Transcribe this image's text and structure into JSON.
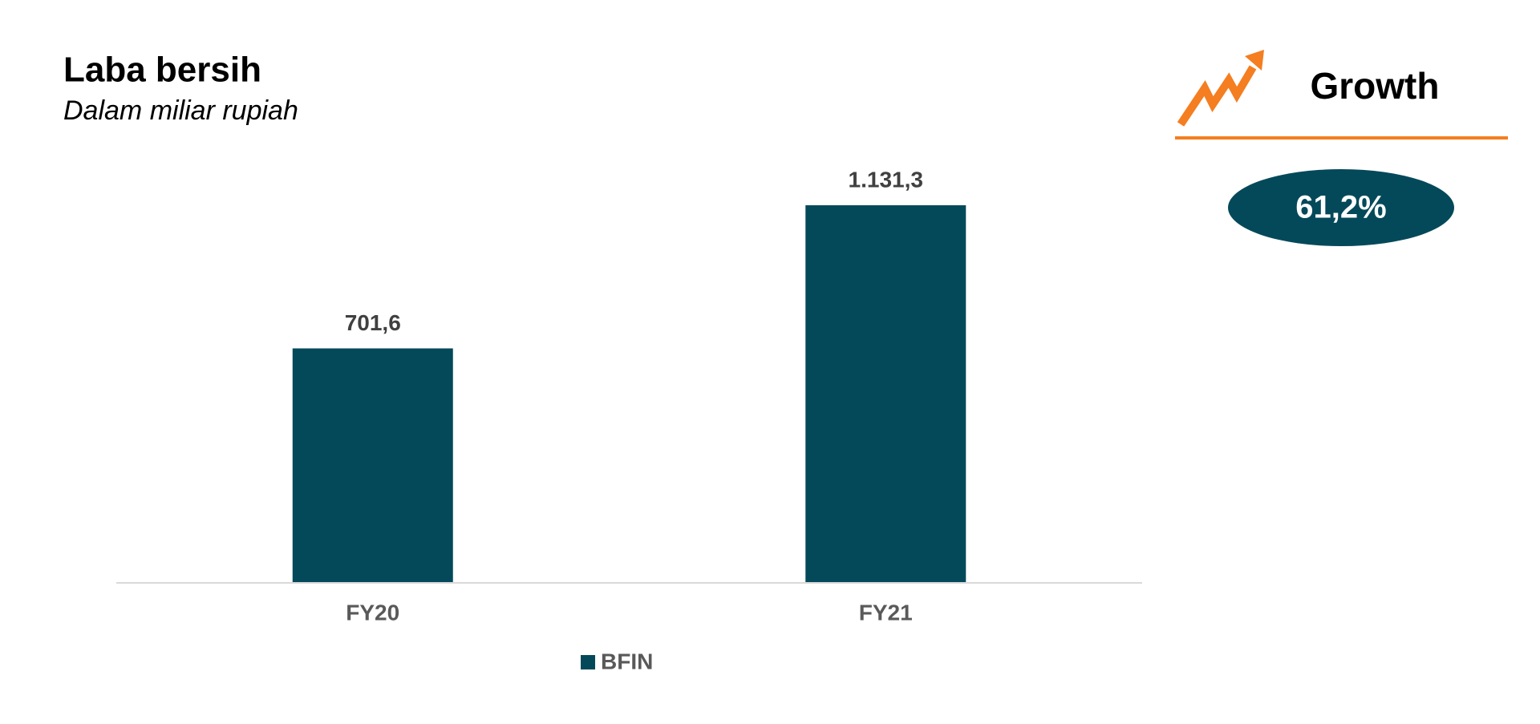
{
  "chart_data": {
    "type": "bar",
    "title": "Laba bersih",
    "subtitle": "Dalam miliar rupiah",
    "categories": [
      "FY20",
      "FY21"
    ],
    "series": [
      {
        "name": "BFIN",
        "color": "#04495a",
        "values": [
          701.6,
          1131.3
        ],
        "value_labels": [
          "701,6",
          "1.131,3"
        ]
      }
    ],
    "legend": "bottom"
  },
  "growth": {
    "title": "Growth",
    "label": "61,2%",
    "color": "#f47e20",
    "badge_color": "#04495a"
  }
}
